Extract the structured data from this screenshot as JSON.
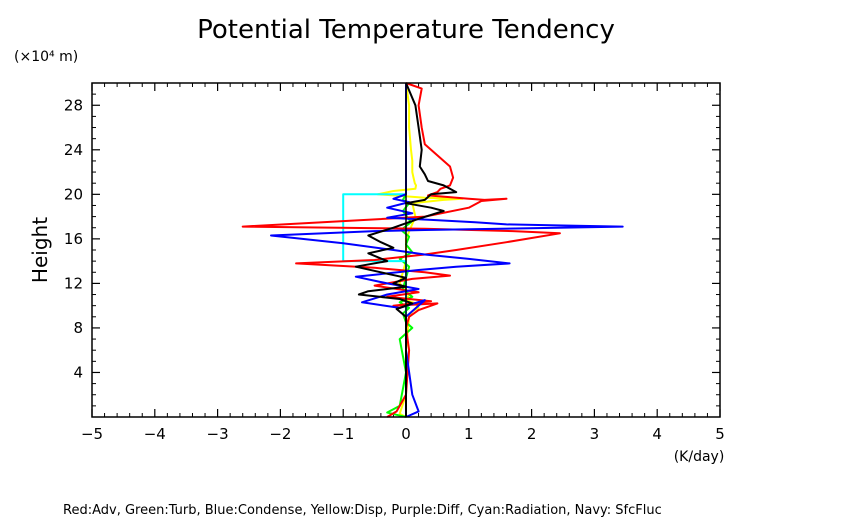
{
  "chart_data": {
    "type": "line",
    "title": "Potential Temperature Tendency",
    "ylabel": "Height",
    "yunit": "(×10⁴ m)",
    "xunit": "(K/day)",
    "xlim": [
      -5,
      5
    ],
    "ylim": [
      0,
      30
    ],
    "xticks": [
      "−5",
      "−4",
      "−3",
      "−2",
      "−1",
      "0",
      "1",
      "2",
      "3",
      "4",
      "5"
    ],
    "yticks": [
      "4",
      "8",
      "12",
      "16",
      "20",
      "24",
      "28"
    ],
    "grid": false,
    "legend_text": "Red:Adv, Green:Turb, Blue:Condense, Yellow:Disp, Purple:Diff, Cyan:Radiation, Navy: SfcFluc",
    "series": [
      {
        "name": "Yellow:Disp",
        "color": "#ffff00",
        "x": [
          0.0,
          0.05,
          0.05,
          0.08,
          0.1,
          0.1,
          0.12,
          0.14,
          0.16,
          0.15,
          -0.2,
          -0.45,
          -0.2,
          0.3,
          0.9,
          0.6,
          0.1,
          0.15,
          0.0,
          0.0,
          -0.1,
          0.05,
          0.0,
          0.15,
          0.2,
          0.1,
          0.05,
          0.0,
          0.0,
          -0.1,
          0.0
        ],
        "y": [
          30,
          28,
          26,
          24,
          23,
          22,
          21.5,
          21,
          20.8,
          20.5,
          20.3,
          20.0,
          19.9,
          19.7,
          19.6,
          19.5,
          19.2,
          18,
          16,
          14,
          12,
          11,
          10.5,
          10.2,
          9.8,
          9.5,
          9,
          6,
          2,
          0.3,
          0
        ]
      },
      {
        "name": "Green:Turb",
        "color": "#00ff00",
        "x": [
          0.0,
          0.0,
          0.0,
          -0.05,
          0.05,
          -0.05,
          0.08,
          -0.08,
          0.05,
          0.0,
          0.1,
          -0.1,
          0.05,
          0.0,
          -0.05,
          0.1,
          -0.1,
          0.05,
          -0.05,
          0.0,
          0.1,
          -0.1,
          0.0,
          -0.1,
          -0.3,
          -0.15,
          0.0
        ],
        "y": [
          30,
          22,
          20,
          19.5,
          19.2,
          18.5,
          17.5,
          16.8,
          16.2,
          15.5,
          14.8,
          14.2,
          13.5,
          12.5,
          11.5,
          10.8,
          10.3,
          9.8,
          9.3,
          8.5,
          8,
          7,
          4,
          1,
          0.4,
          0.2,
          0
        ]
      },
      {
        "name": "Cyan:Radiation",
        "color": "#00ffff",
        "x": [
          0.0,
          0.0,
          -1.0,
          -1.0,
          0.0,
          0.0
        ],
        "y": [
          30,
          20,
          20,
          14,
          14,
          0
        ]
      },
      {
        "name": "Red:Adv",
        "color": "#ff0000",
        "x": [
          0.0,
          0.25,
          0.2,
          0.25,
          0.3,
          0.5,
          0.7,
          0.75,
          0.7,
          0.55,
          0.5,
          0.35,
          1.0,
          1.25,
          1.6,
          1.2,
          1.0,
          0.3,
          -1.0,
          -2.6,
          0.3,
          1.7,
          2.45,
          1.6,
          0.8,
          0.3,
          -0.5,
          -1.75,
          -0.5,
          0.3,
          0.7,
          0.1,
          -0.5,
          0.2,
          -0.3,
          0.4,
          -0.2,
          0.5,
          0.2,
          0.05,
          0.0,
          0.05,
          0.0,
          -0.15,
          -0.3
        ],
        "y": [
          30,
          29.5,
          28,
          26,
          24.5,
          23.5,
          22.5,
          21.5,
          20.8,
          20.5,
          20.2,
          19.9,
          19.6,
          19.5,
          19.6,
          19.4,
          18.8,
          18.0,
          17.6,
          17.1,
          16.9,
          16.7,
          16.5,
          15.7,
          15.0,
          14.6,
          14.1,
          13.8,
          13.4,
          13.0,
          12.7,
          12.4,
          11.8,
          11.2,
          10.8,
          10.4,
          10.0,
          10.2,
          9.6,
          9.0,
          8.0,
          6.0,
          2.0,
          0.5,
          0
        ]
      },
      {
        "name": "Blue:Condense",
        "color": "#0000ff",
        "x": [
          0.0,
          0.0,
          -0.2,
          0.05,
          -0.3,
          0.1,
          -0.3,
          0.4,
          1.1,
          1.6,
          2.5,
          3.45,
          1.5,
          0.3,
          -0.5,
          -1.3,
          -2.15,
          -1.0,
          -0.2,
          0.3,
          1.0,
          1.65,
          0.8,
          0.2,
          -0.3,
          -0.8,
          -0.3,
          0.2,
          -0.3,
          -0.7,
          -0.1,
          0.3,
          0.0,
          0.0,
          0.1,
          0.2,
          0.0
        ],
        "y": [
          30,
          20,
          19.6,
          19.3,
          18.8,
          18.3,
          17.9,
          17.7,
          17.5,
          17.3,
          17.2,
          17.1,
          16.9,
          16.8,
          16.7,
          16.5,
          16.3,
          15.6,
          15.0,
          14.6,
          14.2,
          13.8,
          13.5,
          13.2,
          12.9,
          12.6,
          12.0,
          11.5,
          11.0,
          10.3,
          9.8,
          10.5,
          9.0,
          6.0,
          2.0,
          0.5,
          0
        ]
      },
      {
        "name": "Black",
        "color": "#000000",
        "x": [
          0.0,
          0.15,
          0.2,
          0.25,
          0.22,
          0.3,
          0.35,
          0.6,
          0.8,
          0.4,
          0.3,
          0.0,
          0.4,
          0.6,
          0.2,
          -0.2,
          -0.6,
          -0.4,
          -0.2,
          -0.6,
          -0.3,
          -0.8,
          -0.4,
          0.0,
          -0.2,
          0.0,
          -0.3,
          -0.6,
          -0.75,
          -0.1,
          0.1,
          -0.15,
          0.0,
          0.0
        ],
        "y": [
          30,
          28,
          26,
          24,
          22.5,
          21.8,
          21.2,
          20.8,
          20.2,
          20.0,
          19.5,
          19.2,
          18.8,
          18.5,
          17.8,
          17.0,
          16.3,
          15.7,
          15.2,
          14.7,
          14.0,
          13.5,
          13.0,
          12.5,
          12.0,
          11.7,
          11.5,
          11.3,
          11.0,
          10.6,
          10.2,
          9.7,
          9.0,
          0
        ]
      }
    ]
  }
}
